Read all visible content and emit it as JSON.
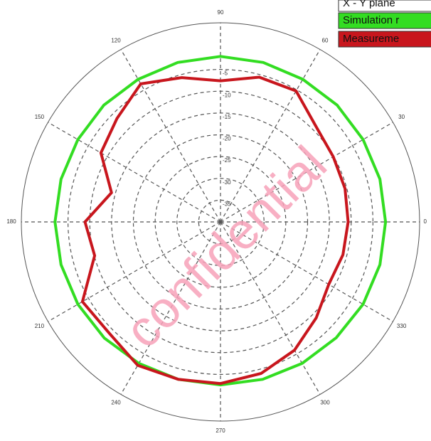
{
  "chart_data": {
    "type": "polar",
    "legend_title": "X - Y plane",
    "annotation": "confidential",
    "theta": [
      0,
      15,
      30,
      45,
      60,
      75,
      90,
      105,
      120,
      135,
      150,
      165,
      180,
      195,
      210,
      225,
      240,
      255,
      270,
      285,
      300,
      315,
      330,
      345
    ],
    "thetaticks": [
      0,
      30,
      60,
      90,
      120,
      150,
      180,
      210,
      240,
      270,
      300,
      330
    ],
    "rlim": [
      -40,
      0
    ],
    "rticks": [
      -35,
      -30,
      -25,
      -20,
      -15,
      -10,
      -5
    ],
    "grid": true,
    "legend": "top-right",
    "series": [
      {
        "name": "Simulation r",
        "color": "#33dd22",
        "values": [
          -2.1,
          -2.1,
          -2.2,
          -2.1,
          -2.2,
          -2.1,
          -2.0,
          -2.1,
          -2.2,
          -2.1,
          -2.2,
          -2.1,
          -2.0,
          -2.1,
          -2.2,
          -2.3,
          -2.5,
          -2.6,
          -2.6,
          -2.6,
          -2.5,
          -2.4,
          -2.2,
          -2.1
        ]
      },
      {
        "name": "Measureme",
        "color": "#c8161d",
        "values": [
          -10.7,
          -10.4,
          -10.1,
          -9.0,
          -5.3,
          -5.6,
          -7.6,
          -5.7,
          -3.4,
          -6.4,
          -8.3,
          -14.1,
          -8.9,
          -10.1,
          -3.4,
          -3.9,
          -2.0,
          -2.6,
          -2.9,
          -4.0,
          -6.0,
          -8.9,
          -11.3,
          -10.9
        ]
      }
    ]
  }
}
